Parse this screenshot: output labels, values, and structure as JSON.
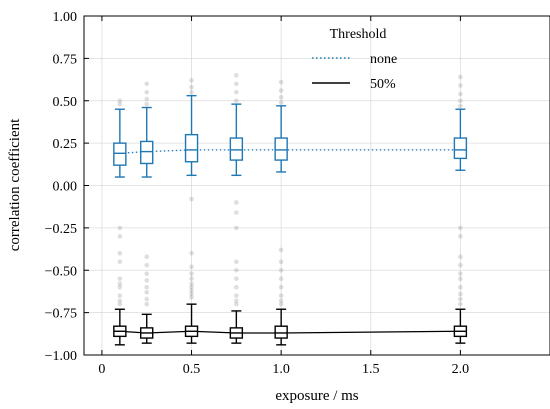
{
  "chart_data": {
    "type": "box",
    "title": "",
    "xlabel": "exposure / ms",
    "ylabel": "correlation coefficient",
    "xlim": [
      -0.1,
      2.5
    ],
    "ylim": [
      -1.0,
      1.0
    ],
    "xticks": [
      0,
      0.5,
      1.0,
      1.5,
      2.0
    ],
    "xtick_labels": [
      "0",
      "0.5",
      "1.0",
      "1.5",
      "2.0"
    ],
    "yticks": [
      1.0,
      0.75,
      0.5,
      0.25,
      0.0,
      -0.25,
      -0.5,
      -0.75,
      -1.0
    ],
    "ytick_labels": [
      "1.00",
      "0.75",
      "0.50",
      "0.25",
      "0.00",
      "−0.25",
      "−0.50",
      "−0.75",
      "−1.00"
    ],
    "grid": true,
    "legend": {
      "title": "Threshold",
      "position": "top-right",
      "entries": [
        {
          "label": "none",
          "style": "dotted",
          "color": "#1f77b4"
        },
        {
          "label": "50%",
          "style": "solid",
          "color": "#000000"
        }
      ]
    },
    "series": [
      {
        "name": "none",
        "color": "#1f77b4",
        "x": [
          0.1,
          0.25,
          0.5,
          0.75,
          1.0,
          2.0
        ],
        "median": [
          0.19,
          0.2,
          0.21,
          0.21,
          0.21,
          0.21
        ],
        "q1": [
          0.12,
          0.13,
          0.14,
          0.15,
          0.15,
          0.16
        ],
        "q3": [
          0.25,
          0.26,
          0.3,
          0.28,
          0.28,
          0.28
        ],
        "whisker_low": [
          0.05,
          0.05,
          0.06,
          0.06,
          0.08,
          0.09
        ],
        "whisker_high": [
          0.45,
          0.46,
          0.53,
          0.48,
          0.47,
          0.45
        ],
        "outliers": [
          [
            0.48,
            0.5
          ],
          [
            0.48,
            0.51,
            0.55,
            0.6
          ],
          [
            0.55,
            0.58,
            0.62
          ],
          [
            0.5,
            0.55,
            0.6,
            0.65
          ],
          [
            0.49,
            0.52,
            0.56,
            0.61
          ],
          [
            0.47,
            0.5,
            0.54,
            0.59,
            0.64
          ]
        ]
      },
      {
        "name": "50%",
        "color": "#000000",
        "x": [
          0.1,
          0.25,
          0.5,
          0.75,
          1.0,
          2.0
        ],
        "median": [
          -0.86,
          -0.87,
          -0.86,
          -0.87,
          -0.87,
          -0.86
        ],
        "q1": [
          -0.89,
          -0.9,
          -0.89,
          -0.9,
          -0.9,
          -0.89
        ],
        "q3": [
          -0.83,
          -0.84,
          -0.83,
          -0.84,
          -0.83,
          -0.83
        ],
        "whisker_low": [
          -0.94,
          -0.93,
          -0.93,
          -0.93,
          -0.94,
          -0.93
        ],
        "whisker_high": [
          -0.73,
          -0.76,
          -0.7,
          -0.74,
          -0.73,
          -0.73
        ],
        "outliers": [
          [
            -0.25,
            -0.3,
            -0.4,
            -0.45,
            -0.55,
            -0.58,
            -0.6,
            -0.65,
            -0.68,
            -0.7
          ],
          [
            -0.42,
            -0.47,
            -0.52,
            -0.56,
            -0.6,
            -0.63,
            -0.67,
            -0.7
          ],
          [
            -0.08,
            -0.4,
            -0.48,
            -0.52,
            -0.55,
            -0.58,
            -0.6,
            -0.62,
            -0.64,
            -0.66
          ],
          [
            -0.1,
            -0.16,
            -0.25,
            -0.45,
            -0.5,
            -0.55,
            -0.6,
            -0.65,
            -0.68,
            -0.7
          ],
          [
            -0.38,
            -0.45,
            -0.5,
            -0.55,
            -0.6,
            -0.65,
            -0.68,
            -0.7
          ],
          [
            -0.25,
            -0.3,
            -0.42,
            -0.47,
            -0.52,
            -0.55,
            -0.6,
            -0.64,
            -0.67,
            -0.7
          ]
        ]
      }
    ]
  }
}
